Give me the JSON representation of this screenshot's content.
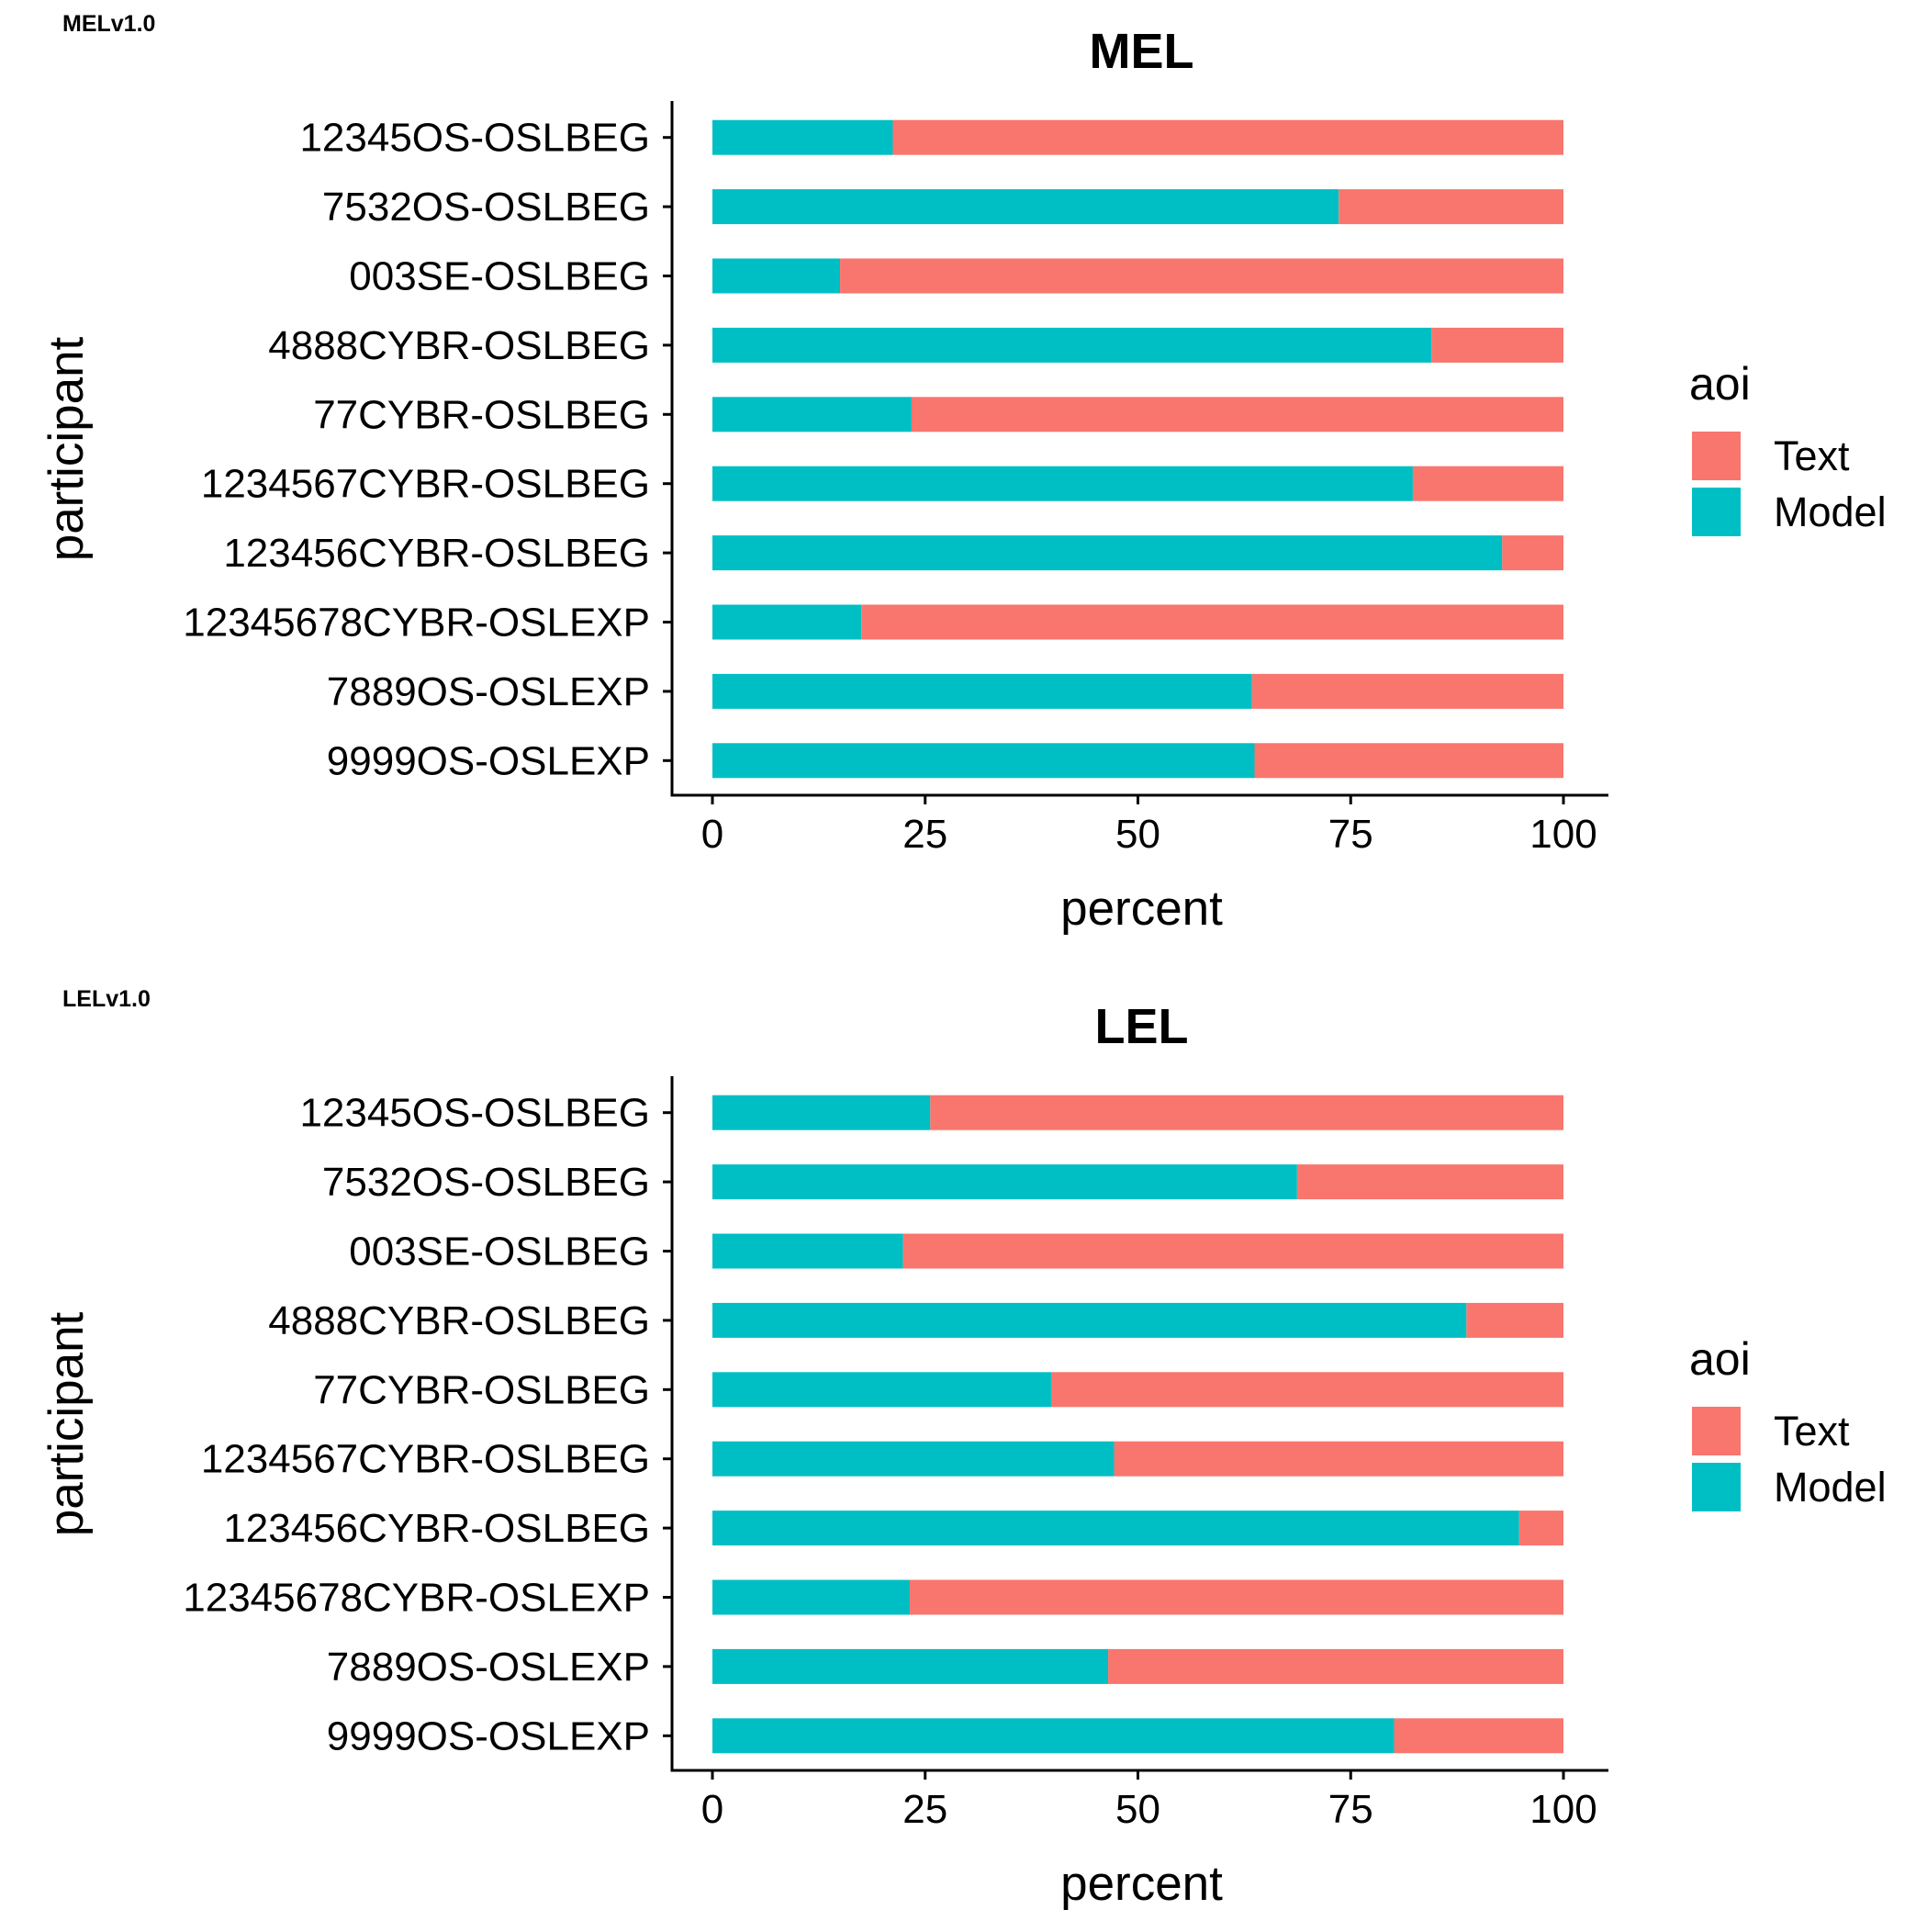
{
  "chart_data": [
    {
      "type": "bar",
      "orientation": "horizontal",
      "stacked": true,
      "tag": "MELv1.0",
      "title": "MEL",
      "xlabel": "percent",
      "ylabel": "participant",
      "xlim": [
        0,
        100
      ],
      "xticks": [
        0,
        25,
        50,
        75,
        100
      ],
      "grid": false,
      "legend_position": "right",
      "legend_title": "aoi",
      "legend": [
        {
          "name": "Text",
          "color": "#F8766D"
        },
        {
          "name": "Model",
          "color": "#00BFC4"
        }
      ],
      "categories": [
        "12345OS-OSLBEG",
        "7532OS-OSLBEG",
        "003SE-OSLBEG",
        "4888CYBR-OSLBEG",
        "77CYBR-OSLBEG",
        "1234567CYBR-OSLBEG",
        "123456CYBR-OSLBEG",
        "12345678CYBR-OSLEXP",
        "7889OS-OSLEXP",
        "9999OS-OSLEXP"
      ],
      "series": [
        {
          "name": "Model",
          "color": "#00BFC4",
          "values": [
            21.2,
            73.6,
            15.0,
            84.5,
            23.4,
            82.3,
            92.8,
            17.5,
            63.4,
            63.7
          ]
        },
        {
          "name": "Text",
          "color": "#F8766D",
          "values": [
            78.8,
            26.4,
            85.0,
            15.5,
            76.6,
            17.7,
            7.2,
            82.5,
            36.6,
            36.3
          ]
        }
      ]
    },
    {
      "type": "bar",
      "orientation": "horizontal",
      "stacked": true,
      "tag": "LELv1.0",
      "title": "LEL",
      "xlabel": "percent",
      "ylabel": "participant",
      "xlim": [
        0,
        100
      ],
      "xticks": [
        0,
        25,
        50,
        75,
        100
      ],
      "grid": false,
      "legend_position": "right",
      "legend_title": "aoi",
      "legend": [
        {
          "name": "Text",
          "color": "#F8766D"
        },
        {
          "name": "Model",
          "color": "#00BFC4"
        }
      ],
      "categories": [
        "12345OS-OSLBEG",
        "7532OS-OSLBEG",
        "003SE-OSLBEG",
        "4888CYBR-OSLBEG",
        "77CYBR-OSLBEG",
        "1234567CYBR-OSLBEG",
        "123456CYBR-OSLBEG",
        "12345678CYBR-OSLEXP",
        "7889OS-OSLEXP",
        "9999OS-OSLEXP"
      ],
      "series": [
        {
          "name": "Model",
          "color": "#00BFC4",
          "values": [
            25.6,
            68.7,
            22.4,
            88.6,
            39.8,
            47.2,
            94.8,
            23.2,
            46.5,
            80.1
          ]
        },
        {
          "name": "Text",
          "color": "#F8766D",
          "values": [
            74.4,
            31.3,
            77.6,
            11.4,
            60.2,
            52.8,
            5.2,
            76.8,
            53.5,
            19.9
          ]
        }
      ]
    }
  ]
}
